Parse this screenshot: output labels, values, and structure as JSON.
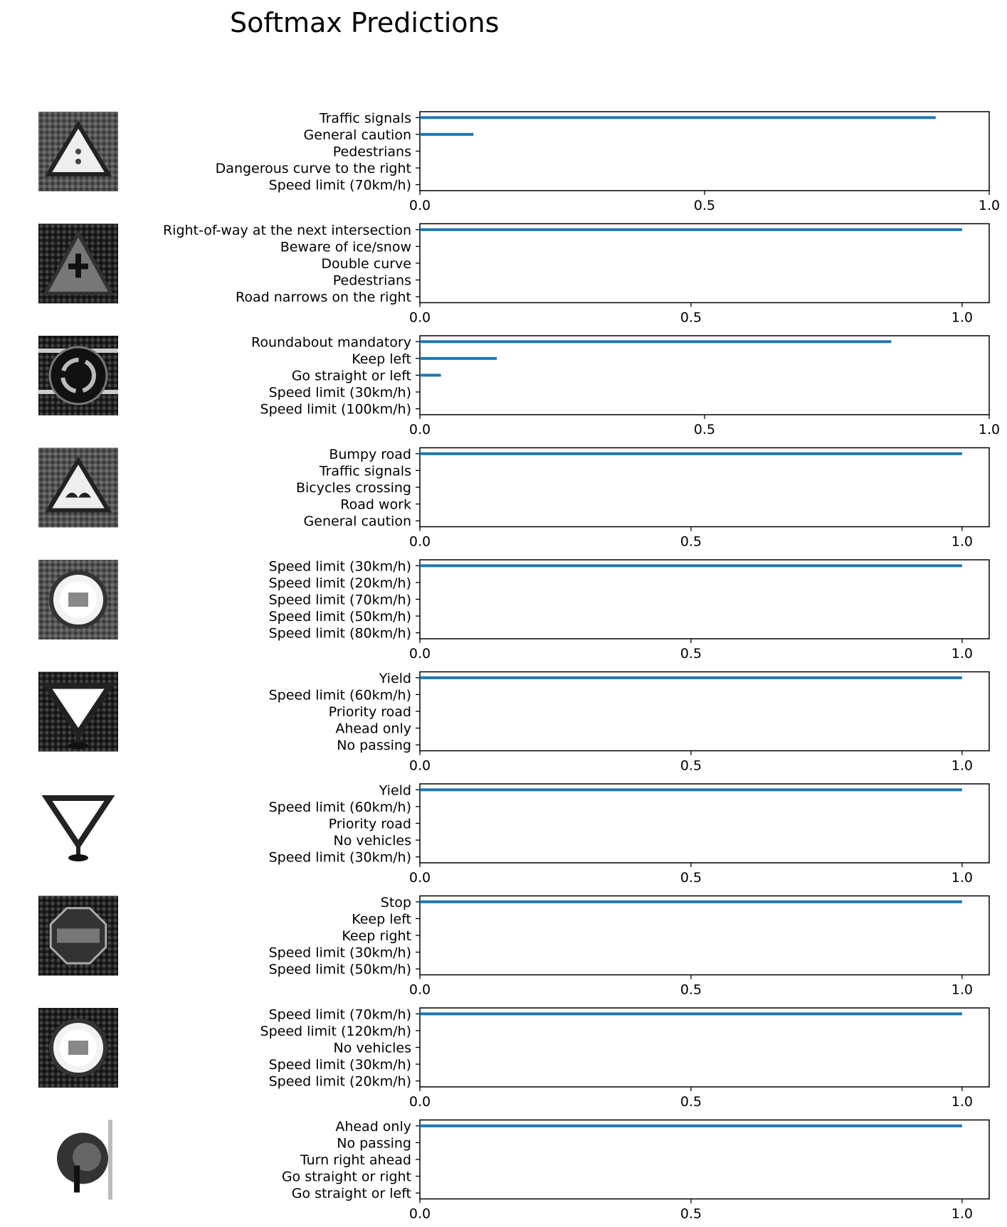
{
  "title": "Softmax Predictions",
  "colors": {
    "bar": "#1f77b4",
    "axes": "#000000",
    "background": "#ffffff"
  },
  "chart_data": {
    "type": "bar",
    "orientation": "horizontal",
    "title": "Softmax Predictions",
    "subplots": [
      {
        "image": "traffic-signals-sign-thumbnail",
        "categories": [
          "Traffic signals",
          "General caution",
          "Pedestrians",
          "Dangerous curve to the right",
          "Speed limit (70km/h)"
        ],
        "values": [
          0.906,
          0.094,
          0.0,
          0.0,
          0.0
        ],
        "xticks": [
          "0.0",
          "0.5",
          "1.0"
        ],
        "xlim": [
          0,
          1.0
        ]
      },
      {
        "image": "right-of-way-sign-thumbnail",
        "categories": [
          "Right-of-way at the next intersection",
          "Beware of ice/snow",
          "Double curve",
          "Pedestrians",
          "Road narrows on the right"
        ],
        "values": [
          1.0,
          0.0,
          0.0,
          0.0,
          0.0
        ],
        "xticks": [
          "0.0",
          "0.5",
          "1.0"
        ],
        "xlim": [
          0,
          1.05
        ]
      },
      {
        "image": "roundabout-sign-thumbnail",
        "categories": [
          "Roundabout mandatory",
          "Keep left",
          "Go straight or left",
          "Speed limit (30km/h)",
          "Speed limit (100km/h)"
        ],
        "values": [
          0.828,
          0.135,
          0.037,
          0.0,
          0.0
        ],
        "xticks": [
          "0.0",
          "0.5",
          "1.0"
        ],
        "xlim": [
          0,
          1.0
        ]
      },
      {
        "image": "bumpy-road-sign-thumbnail",
        "categories": [
          "Bumpy road",
          "Traffic signals",
          "Bicycles crossing",
          "Road work",
          "General caution"
        ],
        "values": [
          1.0,
          0.0,
          0.0,
          0.0,
          0.0
        ],
        "xticks": [
          "0.0",
          "0.5",
          "1.0"
        ],
        "xlim": [
          0,
          1.05
        ]
      },
      {
        "image": "speed-limit-30-sign-thumbnail",
        "categories": [
          "Speed limit (30km/h)",
          "Speed limit (20km/h)",
          "Speed limit (70km/h)",
          "Speed limit (50km/h)",
          "Speed limit (80km/h)"
        ],
        "values": [
          1.0,
          0.0,
          0.0,
          0.0,
          0.0
        ],
        "xticks": [
          "0.0",
          "0.5",
          "1.0"
        ],
        "xlim": [
          0,
          1.05
        ]
      },
      {
        "image": "yield-sign-thumbnail-1",
        "categories": [
          "Yield",
          "Speed limit (60km/h)",
          "Priority road",
          "Ahead only",
          "No passing"
        ],
        "values": [
          1.0,
          0.0,
          0.0,
          0.0,
          0.0
        ],
        "xticks": [
          "0.0",
          "0.5",
          "1.0"
        ],
        "xlim": [
          0,
          1.05
        ]
      },
      {
        "image": "yield-sign-thumbnail-2",
        "categories": [
          "Yield",
          "Speed limit (60km/h)",
          "Priority road",
          "No vehicles",
          "Speed limit (30km/h)"
        ],
        "values": [
          1.0,
          0.0,
          0.0,
          0.0,
          0.0
        ],
        "xticks": [
          "0.0",
          "0.5",
          "1.0"
        ],
        "xlim": [
          0,
          1.05
        ]
      },
      {
        "image": "stop-sign-thumbnail",
        "categories": [
          "Stop",
          "Keep left",
          "Keep right",
          "Speed limit (30km/h)",
          "Speed limit (50km/h)"
        ],
        "values": [
          1.0,
          0.0,
          0.0,
          0.0,
          0.0
        ],
        "xticks": [
          "0.0",
          "0.5",
          "1.0"
        ],
        "xlim": [
          0,
          1.05
        ]
      },
      {
        "image": "speed-limit-70-sign-thumbnail",
        "categories": [
          "Speed limit (70km/h)",
          "Speed limit (120km/h)",
          "No vehicles",
          "Speed limit (30km/h)",
          "Speed limit (20km/h)"
        ],
        "values": [
          1.0,
          0.0,
          0.0,
          0.0,
          0.0
        ],
        "xticks": [
          "0.0",
          "0.5",
          "1.0"
        ],
        "xlim": [
          0,
          1.05
        ]
      },
      {
        "image": "ahead-only-sign-thumbnail",
        "categories": [
          "Ahead only",
          "No passing",
          "Turn right ahead",
          "Go straight or right",
          "Go straight or left"
        ],
        "values": [
          1.0,
          0.0,
          0.0,
          0.0,
          0.0
        ],
        "xticks": [
          "0.0",
          "0.5",
          "1.0"
        ],
        "xlim": [
          0,
          1.05
        ]
      }
    ]
  }
}
